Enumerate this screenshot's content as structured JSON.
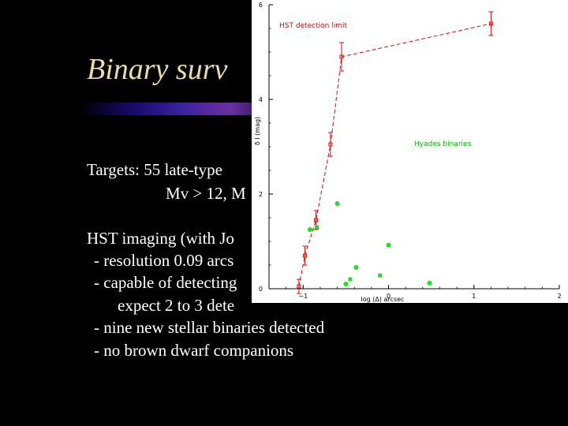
{
  "slide": {
    "title": "Binary surv",
    "lines": [
      "Targets:   55 late-type",
      "Mv > 12, M",
      "HST imaging (with Jo",
      "- resolution 0.09 arcs",
      "- capable of detecting",
      "expect 2 to 3 dete",
      "- nine new stellar binaries detected",
      "- no brown dwarf companions"
    ]
  },
  "chart_data": {
    "type": "scatter",
    "xlabel": "log (Δ) arcsec",
    "ylabel": "δ I (mag)",
    "xlim": [
      -1.4,
      2.0
    ],
    "ylim": [
      0,
      6
    ],
    "xticks": [
      -1,
      0,
      1,
      2
    ],
    "xtick_labels": [
      "−1",
      "0",
      "1",
      "2"
    ],
    "yticks": [
      0,
      2,
      4,
      6
    ],
    "ytick_labels": [
      "0",
      "2",
      "4",
      "6"
    ],
    "annotations": [
      {
        "text": "HST detection limit",
        "color": "#d01010",
        "x": -1.28,
        "y": 5.52
      },
      {
        "text": "Hyades binaries",
        "color": "#10b010",
        "x": 0.3,
        "y": 3.02
      }
    ],
    "series": [
      {
        "name": "HST detection limit",
        "color": "#d01010",
        "style": "dashed-line-with-errorbars",
        "x": [
          -1.05,
          -0.98,
          -0.85,
          -0.68,
          -0.55,
          1.2
        ],
        "y": [
          0.05,
          0.7,
          1.45,
          3.05,
          4.9,
          5.6
        ],
        "err": [
          0.15,
          0.2,
          0.2,
          0.25,
          0.3,
          0.25
        ]
      },
      {
        "name": "Hyades binaries",
        "color": "#22dd22",
        "style": "markers",
        "x": [
          -0.92,
          -0.84,
          -0.6,
          -0.5,
          -0.45,
          -0.38,
          0.0,
          -0.1,
          0.48
        ],
        "y": [
          1.25,
          1.3,
          1.8,
          0.1,
          0.2,
          0.45,
          0.92,
          0.28,
          0.12
        ]
      }
    ]
  }
}
